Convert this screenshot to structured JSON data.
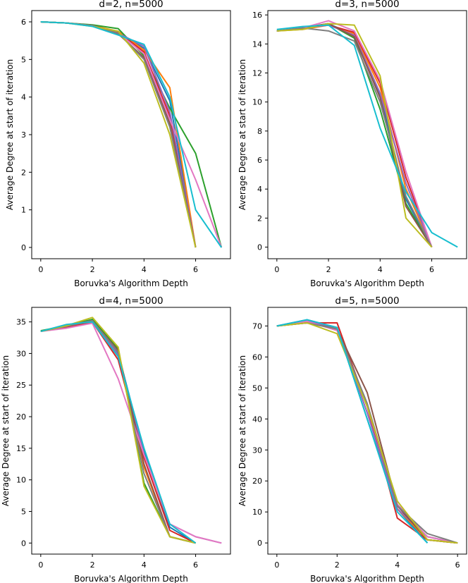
{
  "chart_data": [
    {
      "type": "line",
      "title": "d=2, n=5000",
      "xlabel": "Boruvka's Algorithm Depth",
      "ylabel": "Average Degree at start of iteration",
      "xlim": [
        -0.35,
        7.35
      ],
      "ylim": [
        -0.3,
        6.3
      ],
      "xticks": [
        "0",
        "2",
        "4",
        "6"
      ],
      "yticks": [
        "0",
        "1",
        "2",
        "3",
        "4",
        "5",
        "6"
      ],
      "grid": false,
      "series": [
        {
          "color": "#1f77b4",
          "x": [
            0,
            1,
            2,
            3,
            4,
            5,
            6
          ],
          "y": [
            6.0,
            5.97,
            5.9,
            5.7,
            5.3,
            3.9,
            0
          ]
        },
        {
          "color": "#ff7f0e",
          "x": [
            0,
            1,
            2,
            3,
            4,
            5,
            6
          ],
          "y": [
            6.0,
            5.97,
            5.9,
            5.75,
            5.25,
            4.25,
            0
          ]
        },
        {
          "color": "#2ca02c",
          "x": [
            0,
            1,
            2,
            3,
            4,
            5,
            6,
            7
          ],
          "y": [
            6.0,
            5.97,
            5.92,
            5.82,
            5.1,
            3.7,
            2.5,
            0
          ]
        },
        {
          "color": "#d62728",
          "x": [
            0,
            1,
            2,
            3,
            4,
            5,
            6
          ],
          "y": [
            6.0,
            5.97,
            5.9,
            5.72,
            5.2,
            3.5,
            0
          ]
        },
        {
          "color": "#9467bd",
          "x": [
            0,
            1,
            2,
            3,
            4,
            5,
            6
          ],
          "y": [
            6.0,
            5.97,
            5.9,
            5.7,
            5.35,
            3.6,
            0
          ]
        },
        {
          "color": "#8c564b",
          "x": [
            0,
            1,
            2,
            3,
            4,
            5,
            6
          ],
          "y": [
            6.0,
            5.97,
            5.9,
            5.68,
            5.05,
            3.3,
            0
          ]
        },
        {
          "color": "#e377c2",
          "x": [
            0,
            1,
            2,
            3,
            4,
            5,
            6,
            7
          ],
          "y": [
            6.0,
            5.97,
            5.9,
            5.7,
            5.15,
            3.4,
            1.8,
            0
          ]
        },
        {
          "color": "#7f7f7f",
          "x": [
            0,
            1,
            2,
            3,
            4,
            5,
            6
          ],
          "y": [
            6.0,
            5.97,
            5.9,
            5.7,
            5.0,
            3.2,
            0
          ]
        },
        {
          "color": "#bcbd22",
          "x": [
            0,
            1,
            2,
            3,
            4,
            5,
            6
          ],
          "y": [
            6.0,
            5.97,
            5.88,
            5.75,
            4.9,
            3.0,
            0
          ]
        },
        {
          "color": "#17becf",
          "x": [
            0,
            1,
            2,
            3,
            4,
            5,
            6,
            7
          ],
          "y": [
            6.0,
            5.97,
            5.88,
            5.65,
            5.4,
            4.0,
            1.0,
            0
          ]
        }
      ]
    },
    {
      "type": "line",
      "title": "d=3, n=5000",
      "xlabel": "Boruvka's Algorithm Depth",
      "ylabel": "Average Degree at start of iteration",
      "xlim": [
        -0.35,
        7.35
      ],
      "ylim": [
        -0.8,
        16.3
      ],
      "xticks": [
        "0",
        "2",
        "4",
        "6"
      ],
      "yticks": [
        "0",
        "2",
        "4",
        "6",
        "8",
        "10",
        "12",
        "14",
        "16"
      ],
      "grid": false,
      "series": [
        {
          "color": "#1f77b4",
          "x": [
            0,
            1,
            2,
            3,
            4,
            5,
            6
          ],
          "y": [
            14.9,
            15.1,
            15.4,
            14.6,
            10.5,
            3.3,
            0
          ]
        },
        {
          "color": "#ff7f0e",
          "x": [
            0,
            1,
            2,
            3,
            4,
            5,
            6
          ],
          "y": [
            14.9,
            15.0,
            15.3,
            14.7,
            11.0,
            4.0,
            0
          ]
        },
        {
          "color": "#2ca02c",
          "x": [
            0,
            1,
            2,
            3,
            4,
            5,
            6
          ],
          "y": [
            14.9,
            15.1,
            15.4,
            14.4,
            9.5,
            3.0,
            0
          ]
        },
        {
          "color": "#d62728",
          "x": [
            0,
            1,
            2,
            3,
            4,
            5,
            6
          ],
          "y": [
            14.9,
            15.1,
            15.3,
            14.8,
            11.3,
            4.8,
            0
          ]
        },
        {
          "color": "#9467bd",
          "x": [
            0,
            1,
            2,
            3,
            4,
            5,
            6
          ],
          "y": [
            14.9,
            15.1,
            15.3,
            14.6,
            10.6,
            4.4,
            0
          ]
        },
        {
          "color": "#8c564b",
          "x": [
            0,
            1,
            2,
            3,
            4,
            5,
            6
          ],
          "y": [
            14.9,
            15.1,
            15.4,
            14.5,
            10.3,
            2.8,
            0
          ]
        },
        {
          "color": "#e377c2",
          "x": [
            0,
            1,
            2,
            3,
            4,
            5,
            6
          ],
          "y": [
            14.9,
            15.1,
            15.6,
            14.9,
            11.5,
            5.2,
            0
          ]
        },
        {
          "color": "#7f7f7f",
          "x": [
            0,
            1,
            2,
            3,
            4,
            5,
            6
          ],
          "y": [
            14.9,
            15.1,
            14.9,
            14.2,
            10.0,
            3.5,
            0
          ]
        },
        {
          "color": "#bcbd22",
          "x": [
            0,
            1,
            2,
            3,
            4,
            5,
            6
          ],
          "y": [
            14.9,
            15.0,
            15.4,
            15.3,
            11.8,
            2.0,
            0
          ]
        },
        {
          "color": "#17becf",
          "x": [
            0,
            1,
            2,
            3,
            4,
            5,
            6,
            7
          ],
          "y": [
            15.0,
            15.2,
            15.3,
            13.9,
            8.2,
            3.8,
            1.0,
            0
          ]
        }
      ]
    },
    {
      "type": "line",
      "title": "d=4, n=5000",
      "xlabel": "Boruvka's Algorithm Depth",
      "ylabel": "Average Degree at start of iteration",
      "xlim": [
        -0.35,
        7.35
      ],
      "ylim": [
        -1.75,
        37.3
      ],
      "xticks": [
        "0",
        "2",
        "4",
        "6"
      ],
      "yticks": [
        "0",
        "5",
        "10",
        "15",
        "20",
        "25",
        "30",
        "35"
      ],
      "grid": false,
      "series": [
        {
          "color": "#1f77b4",
          "x": [
            0,
            1,
            2,
            3,
            4,
            5,
            6
          ],
          "y": [
            33.5,
            34.5,
            35.3,
            30.0,
            14.5,
            2.5,
            0
          ]
        },
        {
          "color": "#ff7f0e",
          "x": [
            0,
            1,
            2,
            3,
            4,
            5,
            6
          ],
          "y": [
            33.5,
            34.3,
            35.0,
            29.5,
            12.0,
            1.0,
            0
          ]
        },
        {
          "color": "#2ca02c",
          "x": [
            0,
            1,
            2,
            3,
            4,
            5,
            6
          ],
          "y": [
            33.6,
            34.4,
            35.4,
            30.8,
            9.5,
            1.0,
            0
          ]
        },
        {
          "color": "#d62728",
          "x": [
            0,
            1,
            2,
            3,
            4,
            5,
            6
          ],
          "y": [
            33.5,
            34.2,
            35.0,
            29.0,
            13.5,
            2.0,
            0
          ]
        },
        {
          "color": "#9467bd",
          "x": [
            0,
            1,
            2,
            3,
            4,
            5,
            6,
            7
          ],
          "y": [
            33.5,
            34.4,
            35.2,
            29.8,
            14.0,
            3.0,
            1.0,
            0
          ]
        },
        {
          "color": "#8c564b",
          "x": [
            0,
            1,
            2,
            3,
            4,
            5,
            6
          ],
          "y": [
            33.5,
            34.5,
            35.1,
            30.5,
            12.5,
            1.0,
            0
          ]
        },
        {
          "color": "#e377c2",
          "x": [
            0,
            1,
            2,
            3,
            4,
            5,
            6,
            7
          ],
          "y": [
            33.5,
            34.0,
            34.8,
            26.0,
            14.0,
            3.0,
            1.0,
            0
          ]
        },
        {
          "color": "#7f7f7f",
          "x": [
            0,
            1,
            2,
            3,
            4,
            5,
            6
          ],
          "y": [
            33.5,
            34.3,
            35.2,
            30.2,
            11.0,
            1.0,
            0
          ]
        },
        {
          "color": "#bcbd22",
          "x": [
            0,
            1,
            2,
            3,
            4,
            5,
            6
          ],
          "y": [
            33.5,
            34.4,
            35.7,
            31.0,
            9.0,
            1.0,
            0
          ]
        },
        {
          "color": "#17becf",
          "x": [
            0,
            1,
            2,
            3,
            4,
            5,
            6
          ],
          "y": [
            33.5,
            34.6,
            35.0,
            29.5,
            15.0,
            3.0,
            0
          ]
        }
      ]
    },
    {
      "type": "line",
      "title": "d=5, n=5000",
      "xlabel": "Boruvka's Algorithm Depth",
      "ylabel": "Average Degree at start of iteration",
      "xlim": [
        -0.3,
        6.3
      ],
      "ylim": [
        -3.6,
        76.0
      ],
      "xticks": [
        "0",
        "2",
        "4",
        "6"
      ],
      "yticks": [
        "0",
        "10",
        "20",
        "30",
        "40",
        "50",
        "60",
        "70"
      ],
      "grid": false,
      "series": [
        {
          "color": "#1f77b4",
          "x": [
            0,
            1,
            2,
            3,
            4,
            5
          ],
          "y": [
            70.0,
            72.0,
            69.5,
            40.0,
            11.0,
            0
          ]
        },
        {
          "color": "#ff7f0e",
          "x": [
            0,
            1,
            2,
            3,
            4,
            5,
            6
          ],
          "y": [
            70.0,
            71.5,
            69.0,
            44.0,
            11.0,
            1.0,
            0
          ]
        },
        {
          "color": "#2ca02c",
          "x": [
            0,
            1,
            2,
            3,
            4,
            5,
            6
          ],
          "y": [
            70.0,
            71.5,
            69.0,
            44.0,
            12.0,
            2.0,
            0
          ]
        },
        {
          "color": "#d62728",
          "x": [
            0,
            1,
            2,
            3,
            4,
            5,
            6
          ],
          "y": [
            70.0,
            71.0,
            71.0,
            44.0,
            8.0,
            1.0,
            0
          ]
        },
        {
          "color": "#9467bd",
          "x": [
            0,
            1,
            2,
            3,
            4,
            5,
            6
          ],
          "y": [
            70.0,
            71.5,
            69.5,
            42.0,
            11.0,
            2.0,
            0
          ]
        },
        {
          "color": "#8c564b",
          "x": [
            0,
            1,
            2,
            3,
            4,
            5,
            6
          ],
          "y": [
            70.0,
            71.0,
            69.0,
            48.5,
            12.0,
            1.0,
            0
          ]
        },
        {
          "color": "#e377c2",
          "x": [
            0,
            1,
            2,
            3,
            4,
            5,
            6
          ],
          "y": [
            70.0,
            71.5,
            68.5,
            44.0,
            12.5,
            2.0,
            0
          ]
        },
        {
          "color": "#7f7f7f",
          "x": [
            0,
            1,
            2,
            3,
            4,
            5,
            6
          ],
          "y": [
            70.0,
            71.0,
            69.0,
            45.0,
            12.0,
            3.0,
            0
          ]
        },
        {
          "color": "#bcbd22",
          "x": [
            0,
            1,
            2,
            3,
            4,
            5,
            6
          ],
          "y": [
            70.0,
            71.0,
            67.5,
            44.0,
            13.5,
            1.0,
            0
          ]
        },
        {
          "color": "#17becf",
          "x": [
            0,
            1,
            2,
            3,
            4,
            5
          ],
          "y": [
            70.0,
            72.0,
            69.5,
            40.0,
            10.0,
            0
          ]
        }
      ]
    }
  ]
}
